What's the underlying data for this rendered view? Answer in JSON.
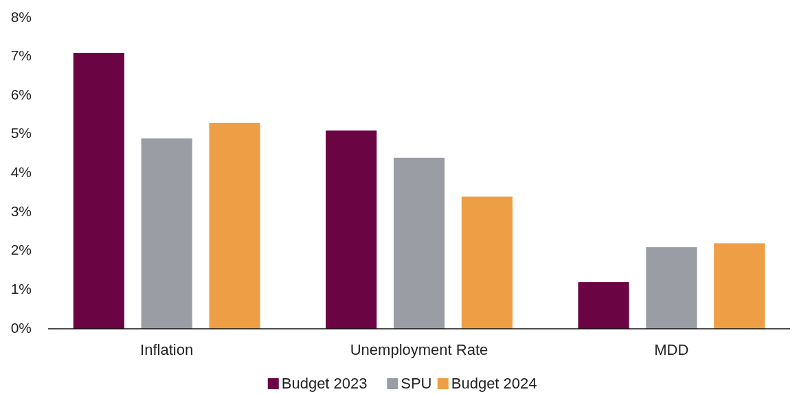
{
  "chart_data": {
    "type": "bar",
    "categories": [
      "Inflation",
      "Unemployment Rate",
      "MDD"
    ],
    "series": [
      {
        "name": "Budget 2023",
        "color": "#6b0442",
        "values": [
          7.1,
          5.1,
          1.2
        ]
      },
      {
        "name": "SPU",
        "color": "#9a9da3",
        "values": [
          4.9,
          4.4,
          2.1
        ]
      },
      {
        "name": "Budget 2024",
        "color": "#ee9e45",
        "values": [
          5.3,
          3.4,
          2.2
        ]
      }
    ],
    "ylim": [
      0,
      8
    ],
    "yticks": [
      {
        "value": 0,
        "label": "0%"
      },
      {
        "value": 1,
        "label": "1%"
      },
      {
        "value": 2,
        "label": "2%"
      },
      {
        "value": 3,
        "label": "3%"
      },
      {
        "value": 4,
        "label": "4%"
      },
      {
        "value": 5,
        "label": "5%"
      },
      {
        "value": 6,
        "label": "6%"
      },
      {
        "value": 7,
        "label": "7%"
      },
      {
        "value": 8,
        "label": "8%"
      }
    ],
    "grid": false,
    "legend": "bottom"
  }
}
